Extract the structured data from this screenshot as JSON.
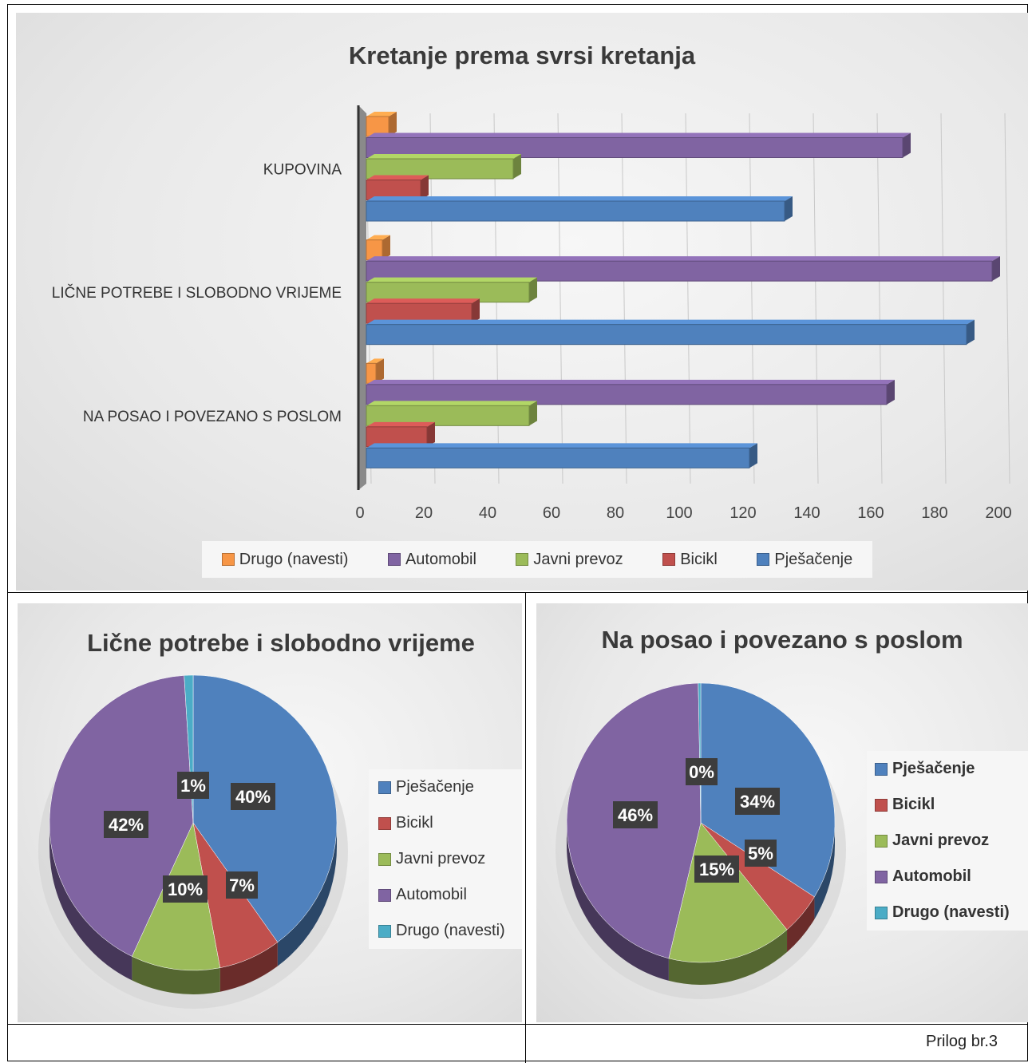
{
  "colors": {
    "Pješačenje": "#4f81bd",
    "Bicikl": "#c0504d",
    "Javni prevoz": "#9bbb59",
    "Automobil": "#8064a2",
    "Drugo (navesti)": "#4bacc6",
    "Drugo (navesti) bar": "#f79646"
  },
  "chart_data": [
    {
      "type": "bar",
      "orientation": "horizontal",
      "title": "Kretanje prema svrsi kretanja",
      "categories": [
        "NA POSAO I POVEZANO S POSLOM",
        "LIČNE POTREBE I  SLOBODNO VRIJEME",
        "KUPOVINA"
      ],
      "series": [
        {
          "name": "Pješačenje",
          "values": [
            120,
            188,
            131
          ]
        },
        {
          "name": "Bicikl",
          "values": [
            19,
            33,
            17
          ]
        },
        {
          "name": "Javni prevoz",
          "values": [
            51,
            51,
            46
          ]
        },
        {
          "name": "Automobil",
          "values": [
            163,
            196,
            168
          ]
        },
        {
          "name": "Drugo (navesti)",
          "values": [
            3,
            5,
            7
          ]
        }
      ],
      "xlim": [
        0,
        200
      ],
      "xticks": [
        "0",
        "20",
        "40",
        "60",
        "80",
        "100",
        "120",
        "140",
        "160",
        "180",
        "200"
      ],
      "grid": true,
      "legend_position": "bottom",
      "legend_order": [
        "Drugo (navesti)",
        "Automobil",
        "Javni prevoz",
        "Bicikl",
        "Pješačenje"
      ]
    },
    {
      "type": "pie",
      "title": "Lične potrebe i  slobodno vrijeme",
      "categories": [
        "Pješačenje",
        "Bicikl",
        "Javni prevoz",
        "Automobil",
        "Drugo (navesti)"
      ],
      "values": [
        40,
        7,
        10,
        42,
        1
      ],
      "labels": [
        "40%",
        "7%",
        "10%",
        "42%",
        "1%"
      ],
      "legend_position": "right"
    },
    {
      "type": "pie",
      "title": "Na posao i povezano s poslom",
      "categories": [
        "Pješačenje",
        "Bicikl",
        "Javni prevoz",
        "Automobil",
        "Drugo (navesti)"
      ],
      "values": [
        34,
        5,
        15,
        46,
        0.3
      ],
      "labels": [
        "34%",
        "5%",
        "15%",
        "46%",
        "0%"
      ],
      "legend_position": "right"
    }
  ],
  "footer": {
    "label": "Prilog br.3"
  }
}
